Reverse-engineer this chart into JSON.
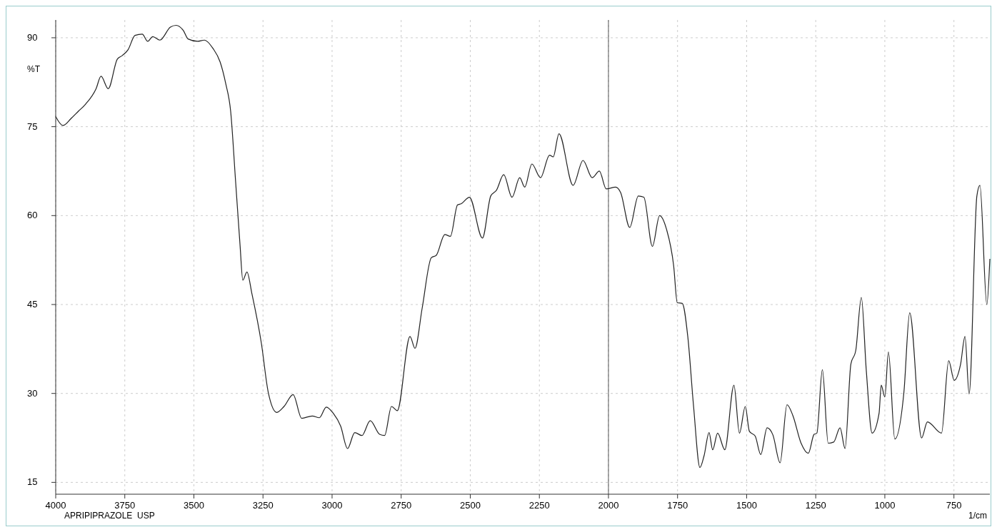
{
  "chart_data": {
    "type": "line",
    "ylabel": "%T",
    "xlabel": "1/cm",
    "annotations": [
      "APRIPIPRAZOLE  USP"
    ],
    "xlim": [
      4000,
      620
    ],
    "ylim": [
      13,
      93
    ],
    "xticks": [
      4000,
      3750,
      3500,
      3250,
      3000,
      2750,
      2500,
      2250,
      2000,
      1750,
      1500,
      1250,
      1000,
      750
    ],
    "yticks": [
      15,
      30,
      45,
      60,
      75,
      90
    ],
    "grid": true,
    "ref_lines": [
      {
        "axis": "x",
        "value": 2000,
        "color": "#555555"
      }
    ],
    "series": [
      {
        "color": "#222222",
        "x": [
          4000,
          3974,
          3944,
          3918,
          3892,
          3854,
          3836,
          3810,
          3777,
          3759,
          3738,
          3713,
          3687,
          3667,
          3649,
          3623,
          3585,
          3564,
          3538,
          3521,
          3487,
          3462,
          3431,
          3405,
          3385,
          3367,
          3349,
          3333,
          3323,
          3308,
          3290,
          3256,
          3231,
          3200,
          3174,
          3141,
          3110,
          3072,
          3046,
          3021,
          2995,
          2969,
          2944,
          2918,
          2892,
          2862,
          2828,
          2810,
          2785,
          2764,
          2718,
          2700,
          2674,
          2641,
          2623,
          2592,
          2572,
          2546,
          2533,
          2503,
          2456,
          2426,
          2405,
          2379,
          2349,
          2321,
          2303,
          2277,
          2246,
          2213,
          2200,
          2179,
          2128,
          2092,
          2059,
          2033,
          2008,
          1974,
          1956,
          1923,
          1892,
          1872,
          1841,
          1815,
          1790,
          1764,
          1751,
          1733,
          1713,
          1692,
          1669,
          1654,
          1636,
          1623,
          1605,
          1579,
          1546,
          1526,
          1505,
          1490,
          1469,
          1449,
          1426,
          1405,
          1379,
          1354,
          1333,
          1303,
          1277,
          1256,
          1246,
          1226,
          1205,
          1185,
          1162,
          1144,
          1123,
          1105,
          1085,
          1067,
          1046,
          1021,
          1013,
          1000,
          987,
          964,
          931,
          910,
          867,
          846,
          795,
          769,
          749,
          726,
          710,
          695,
          667,
          656,
          631,
          620
        ],
        "values": [
          76.7,
          75.2,
          76.4,
          77.6,
          78.8,
          81.4,
          83.5,
          81.4,
          86.4,
          87,
          88,
          90.4,
          90.6,
          89.4,
          90.2,
          89.6,
          91.8,
          92.1,
          91.2,
          89.8,
          89.4,
          89.6,
          88.2,
          85.9,
          82.3,
          77.6,
          65.7,
          55,
          49.1,
          50.5,
          46.8,
          38.5,
          30.2,
          26.8,
          27.8,
          29.8,
          25.8,
          26.2,
          25.9,
          27.7,
          26.6,
          24.5,
          20.7,
          23.4,
          22.9,
          25.4,
          23.1,
          22.9,
          27.8,
          27.1,
          39.6,
          37.6,
          44.4,
          52.9,
          53.3,
          56.8,
          56.5,
          61.8,
          62,
          63.1,
          56.2,
          63.3,
          64.3,
          66.9,
          63.1,
          66.4,
          64.8,
          68.7,
          66.4,
          70.2,
          69.9,
          73.8,
          65.1,
          69.3,
          66.4,
          67.5,
          64.5,
          64.8,
          63.9,
          58,
          63.3,
          63.1,
          54.8,
          60,
          57.7,
          51.5,
          45.3,
          45.2,
          39.6,
          27.8,
          17.5,
          19.5,
          23.4,
          20.5,
          23.3,
          20.5,
          31.4,
          23.3,
          27.8,
          23.6,
          22.8,
          19.7,
          24.2,
          23,
          18.3,
          28.1,
          26.3,
          21.6,
          19.9,
          23.1,
          23.3,
          34,
          21.6,
          21.8,
          24.2,
          20.7,
          34.9,
          37.3,
          46.2,
          33.8,
          23.3,
          26.6,
          31.4,
          29.4,
          37,
          22.3,
          30.2,
          43.6,
          22.5,
          25.2,
          23.3,
          35.5,
          32.2,
          34.9,
          39.6,
          29.9,
          63.3,
          65.1,
          45,
          52.7
        ]
      }
    ]
  }
}
